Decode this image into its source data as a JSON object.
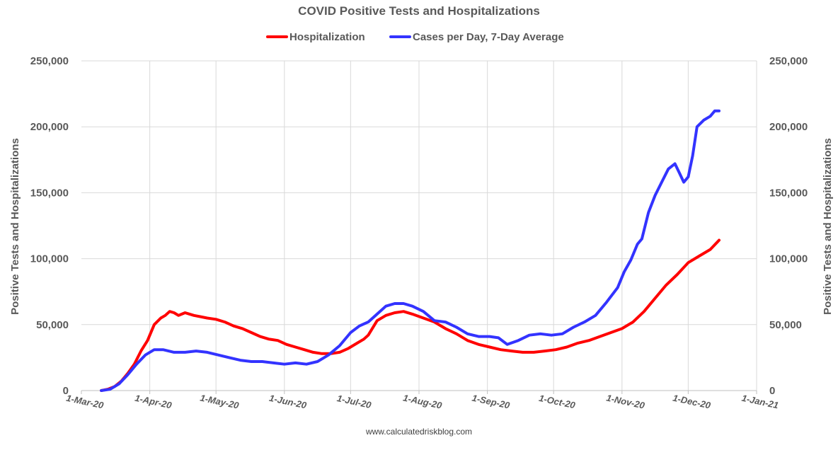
{
  "chart_data": {
    "type": "line",
    "title": "COVID Positive Tests and Hospitalizations",
    "ylabel_left": "Positive Tests and Hospitalizations",
    "ylabel_right": "Positive Tests and Hospitalizations",
    "source": "www.calculatedriskblog.com",
    "ylim": [
      0,
      250000
    ],
    "y_ticks": [
      0,
      50000,
      100000,
      150000,
      200000,
      250000
    ],
    "y_tick_labels": [
      "0",
      "50,000",
      "100,000",
      "150,000",
      "200,000",
      "250,000"
    ],
    "x_ticks": [
      "2020-03-01",
      "2020-04-01",
      "2020-05-01",
      "2020-06-01",
      "2020-07-01",
      "2020-08-01",
      "2020-09-01",
      "2020-10-01",
      "2020-11-01",
      "2020-12-01",
      "2021-01-01"
    ],
    "x_tick_labels": [
      "1-Mar-20",
      "1-Apr-20",
      "1-May-20",
      "1-Jun-20",
      "1-Jul-20",
      "1-Aug-20",
      "1-Sep-20",
      "1-Oct-20",
      "1-Nov-20",
      "1-Dec-20",
      "1-Jan-21"
    ],
    "grid": true,
    "legend_position": "top",
    "series": [
      {
        "name": "Hospitalization",
        "color": "#ff0000",
        "x": [
          "2020-03-10",
          "2020-03-13",
          "2020-03-16",
          "2020-03-19",
          "2020-03-22",
          "2020-03-25",
          "2020-03-28",
          "2020-03-31",
          "2020-04-03",
          "2020-04-06",
          "2020-04-08",
          "2020-04-10",
          "2020-04-12",
          "2020-04-14",
          "2020-04-17",
          "2020-04-19",
          "2020-04-21",
          "2020-04-24",
          "2020-04-27",
          "2020-05-01",
          "2020-05-05",
          "2020-05-09",
          "2020-05-13",
          "2020-05-17",
          "2020-05-21",
          "2020-05-25",
          "2020-05-29",
          "2020-06-02",
          "2020-06-06",
          "2020-06-10",
          "2020-06-14",
          "2020-06-18",
          "2020-06-22",
          "2020-06-26",
          "2020-06-30",
          "2020-07-04",
          "2020-07-07",
          "2020-07-09",
          "2020-07-13",
          "2020-07-17",
          "2020-07-21",
          "2020-07-25",
          "2020-07-29",
          "2020-08-03",
          "2020-08-08",
          "2020-08-13",
          "2020-08-18",
          "2020-08-23",
          "2020-08-28",
          "2020-09-02",
          "2020-09-07",
          "2020-09-12",
          "2020-09-17",
          "2020-09-22",
          "2020-09-27",
          "2020-10-02",
          "2020-10-07",
          "2020-10-12",
          "2020-10-17",
          "2020-10-22",
          "2020-10-27",
          "2020-11-01",
          "2020-11-06",
          "2020-11-11",
          "2020-11-16",
          "2020-11-21",
          "2020-11-26",
          "2020-12-01",
          "2020-12-06",
          "2020-12-11",
          "2020-12-15"
        ],
        "values": [
          0,
          1000,
          3000,
          7000,
          13000,
          20000,
          30000,
          38000,
          50000,
          55000,
          57000,
          60000,
          59000,
          57000,
          59000,
          58000,
          57000,
          56000,
          55000,
          54000,
          52000,
          49000,
          47000,
          44000,
          41000,
          39000,
          38000,
          35000,
          33000,
          31000,
          29000,
          28000,
          28000,
          29000,
          32000,
          36000,
          39000,
          42000,
          53000,
          57000,
          59000,
          60000,
          58000,
          55000,
          52000,
          47000,
          43000,
          38000,
          35000,
          33000,
          31000,
          30000,
          29000,
          29000,
          30000,
          31000,
          33000,
          36000,
          38000,
          41000,
          44000,
          47000,
          52000,
          60000,
          70000,
          80000,
          88000,
          97000,
          102000,
          107000,
          114000
        ]
      },
      {
        "name": "Cases per Day, 7-Day Average",
        "color": "#3333ff",
        "x": [
          "2020-03-10",
          "2020-03-14",
          "2020-03-18",
          "2020-03-22",
          "2020-03-26",
          "2020-03-30",
          "2020-04-03",
          "2020-04-07",
          "2020-04-12",
          "2020-04-17",
          "2020-04-22",
          "2020-04-27",
          "2020-05-02",
          "2020-05-07",
          "2020-05-12",
          "2020-05-17",
          "2020-05-22",
          "2020-05-27",
          "2020-06-01",
          "2020-06-06",
          "2020-06-11",
          "2020-06-16",
          "2020-06-21",
          "2020-06-26",
          "2020-07-01",
          "2020-07-05",
          "2020-07-09",
          "2020-07-13",
          "2020-07-17",
          "2020-07-21",
          "2020-07-25",
          "2020-07-29",
          "2020-08-03",
          "2020-08-08",
          "2020-08-13",
          "2020-08-18",
          "2020-08-23",
          "2020-08-28",
          "2020-09-02",
          "2020-09-06",
          "2020-09-10",
          "2020-09-15",
          "2020-09-20",
          "2020-09-25",
          "2020-09-30",
          "2020-10-05",
          "2020-10-10",
          "2020-10-15",
          "2020-10-20",
          "2020-10-25",
          "2020-10-30",
          "2020-11-02",
          "2020-11-05",
          "2020-11-08",
          "2020-11-10",
          "2020-11-13",
          "2020-11-16",
          "2020-11-19",
          "2020-11-22",
          "2020-11-25",
          "2020-11-27",
          "2020-11-29",
          "2020-12-01",
          "2020-12-03",
          "2020-12-05",
          "2020-12-08",
          "2020-12-11",
          "2020-12-13",
          "2020-12-15"
        ],
        "values": [
          0,
          1000,
          5000,
          12000,
          20000,
          27000,
          31000,
          31000,
          29000,
          29000,
          30000,
          29000,
          27000,
          25000,
          23000,
          22000,
          22000,
          21000,
          20000,
          21000,
          20000,
          22000,
          27000,
          34000,
          44000,
          49000,
          52000,
          58000,
          64000,
          66000,
          66000,
          64000,
          60000,
          53000,
          52000,
          48000,
          43000,
          41000,
          41000,
          40000,
          35000,
          38000,
          42000,
          43000,
          42000,
          43000,
          48000,
          52000,
          57000,
          67000,
          78000,
          90000,
          99000,
          111000,
          115000,
          135000,
          148000,
          158000,
          168000,
          172000,
          165000,
          158000,
          162000,
          178000,
          200000,
          205000,
          208000,
          212000,
          212000
        ]
      }
    ]
  }
}
